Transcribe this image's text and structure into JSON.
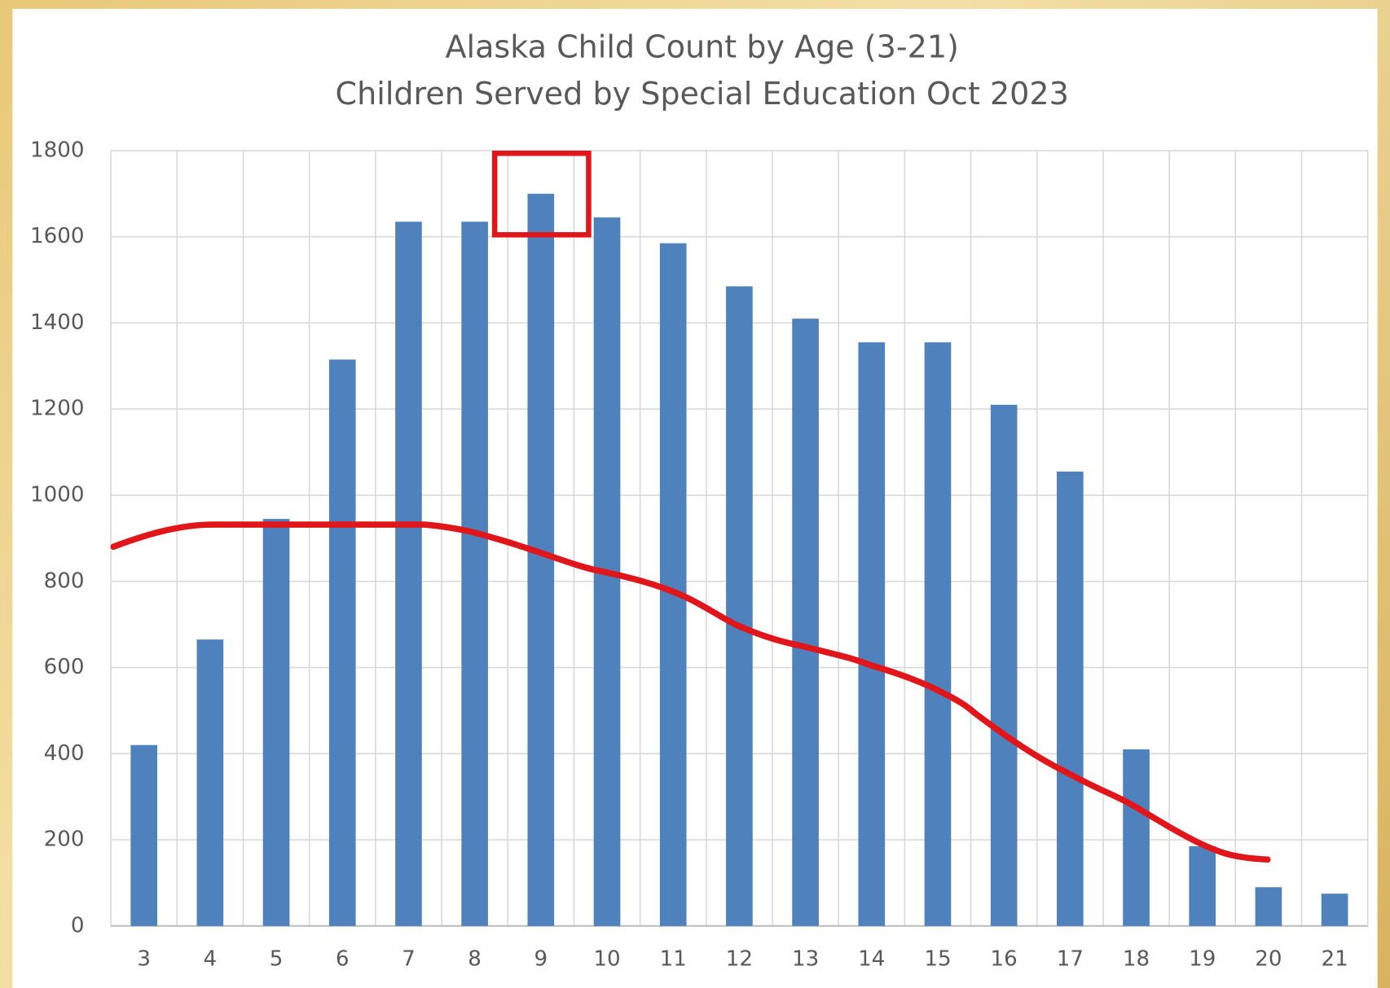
{
  "chart_data": {
    "type": "bar",
    "title": "Alaska Child Count by Age (3-21)",
    "subtitle": "Children Served by Special Education Oct 2023",
    "categories": [
      "3",
      "4",
      "5",
      "6",
      "7",
      "8",
      "9",
      "10",
      "11",
      "12",
      "13",
      "14",
      "15",
      "16",
      "17",
      "18",
      "19",
      "20",
      "21"
    ],
    "values": [
      420,
      665,
      945,
      1315,
      1635,
      1635,
      1700,
      1645,
      1585,
      1485,
      1410,
      1355,
      1355,
      1210,
      1055,
      410,
      185,
      90,
      75
    ],
    "color": "#4f81bd",
    "ylim": [
      0,
      1800
    ],
    "yticks": [
      0,
      200,
      400,
      600,
      800,
      1000,
      1200,
      1400,
      1600,
      1800
    ],
    "grid": true
  }
}
